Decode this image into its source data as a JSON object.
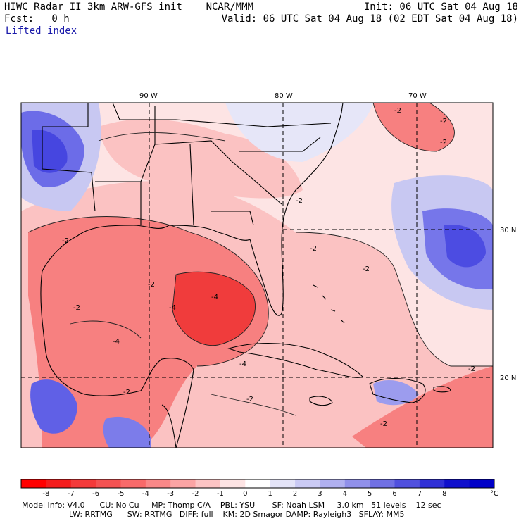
{
  "header": {
    "line1_left": "HIWC Radar II 3km ARW-GFS init    NCAR/MMM",
    "line1_right": "Init: 06 UTC Sat 04 Aug 18",
    "line2_left": "Fcst:   0 h",
    "line2_right": "Valid: 06 UTC Sat 04 Aug 18 (02 EDT Sat 04 Aug 18)",
    "variable": "Lifted index"
  },
  "map": {
    "lon_labels": [
      "90 W",
      "80 W",
      "70 W"
    ],
    "lat_labels": [
      "30 N",
      "20 N"
    ],
    "contour_labels": [
      "-2",
      "-4"
    ],
    "colors": {
      "neg_strong": "#f03c3c",
      "neg_mid": "#f78080",
      "neg_weak": "#fbc2c2",
      "neutral": "#fff0f0",
      "pos_weak": "#d8d8f4",
      "pos_mid": "#8c8cee",
      "pos_strong": "#4646e0"
    }
  },
  "colorbar": {
    "labels": [
      "-8",
      "-7",
      "-6",
      "-5",
      "-4",
      "-3",
      "-2",
      "-1",
      "0",
      "1",
      "2",
      "3",
      "4",
      "5",
      "6",
      "7",
      "8"
    ],
    "unit": "°C",
    "colors": [
      "#ff0000",
      "#f41c1c",
      "#f43a3a",
      "#f45252",
      "#f86a6a",
      "#f98888",
      "#fba4a4",
      "#fcc4c4",
      "#fde4e4",
      "#ffffff",
      "#e4e4f8",
      "#cacaf4",
      "#b0b0f0",
      "#9090ea",
      "#7070e4",
      "#5050de",
      "#3030d6",
      "#1010cc",
      "#0000c8"
    ]
  },
  "footer": {
    "line1": "Model Info: V4.0      CU: No Cu     MP: Thomp C/A    PBL: YSU       SF: Noah LSM     3.0 km   51 levels    12 sec",
    "line2": "LW: RRTMG      SW: RRTMG   DIFF: full    KM: 2D Smagor DAMP: Rayleigh3   SFLAY: MM5"
  }
}
